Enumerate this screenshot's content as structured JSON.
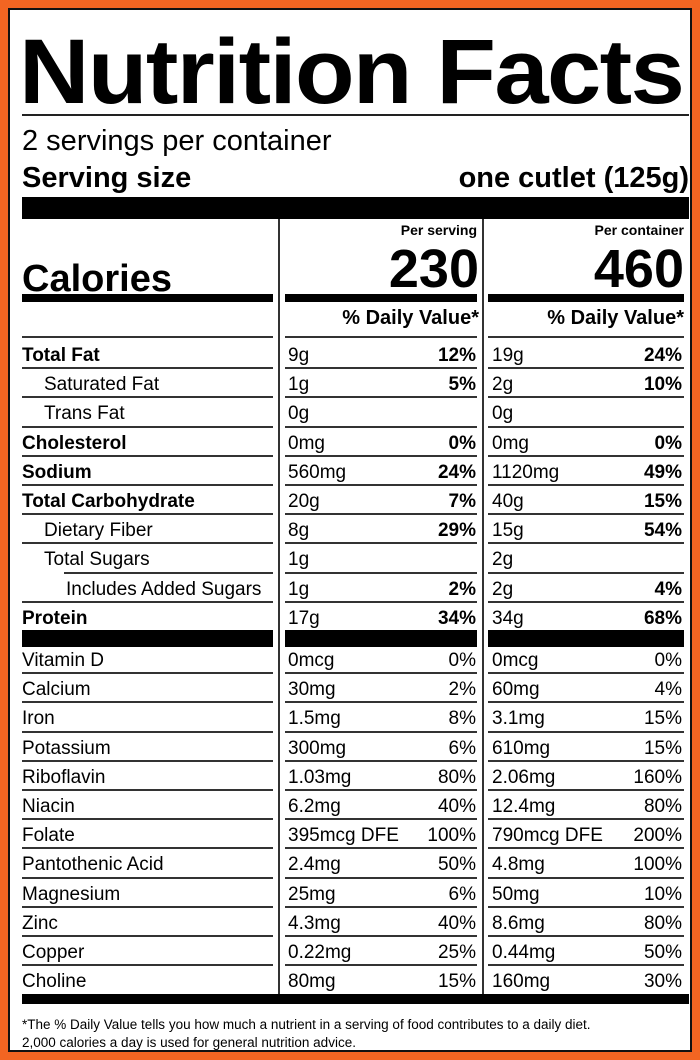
{
  "title": "Nutrition Facts",
  "servings_per_container": "2 servings per container",
  "serving_size": {
    "label": "Serving size",
    "value": "one cutlet (125g)"
  },
  "columns": {
    "per_serving": {
      "heading": "Per serving",
      "calories": "230",
      "dv_heading": "% Daily Value*"
    },
    "per_container": {
      "heading": "Per container",
      "calories": "460",
      "dv_heading": "% Daily Value*"
    }
  },
  "calories_label": "Calories",
  "nutrients": [
    {
      "name": "Total Fat",
      "bold": true,
      "indent": 0,
      "serving_amount": "9g",
      "serving_dv": "12%",
      "container_amount": "19g",
      "container_dv": "24%"
    },
    {
      "name": "Saturated Fat",
      "bold": false,
      "indent": 1,
      "serving_amount": "1g",
      "serving_dv": "5%",
      "container_amount": "2g",
      "container_dv": "10%"
    },
    {
      "name": "Trans Fat",
      "bold": false,
      "indent": 1,
      "serving_amount": "0g",
      "serving_dv": "",
      "container_amount": "0g",
      "container_dv": ""
    },
    {
      "name": "Cholesterol",
      "bold": true,
      "indent": 0,
      "serving_amount": "0mg",
      "serving_dv": "0%",
      "container_amount": "0mg",
      "container_dv": "0%"
    },
    {
      "name": "Sodium",
      "bold": true,
      "indent": 0,
      "serving_amount": "560mg",
      "serving_dv": "24%",
      "container_amount": "1120mg",
      "container_dv": "49%"
    },
    {
      "name": "Total Carbohydrate",
      "bold": true,
      "indent": 0,
      "serving_amount": "20g",
      "serving_dv": "7%",
      "container_amount": "40g",
      "container_dv": "15%"
    },
    {
      "name": "Dietary Fiber",
      "bold": false,
      "indent": 1,
      "serving_amount": "8g",
      "serving_dv": "29%",
      "container_amount": "15g",
      "container_dv": "54%"
    },
    {
      "name": "Total Sugars",
      "bold": false,
      "indent": 1,
      "serving_amount": "1g",
      "serving_dv": "",
      "container_amount": "2g",
      "container_dv": ""
    },
    {
      "name": "Includes Added Sugars",
      "bold": false,
      "indent": 2,
      "serving_amount": "1g",
      "serving_dv": "2%",
      "container_amount": "2g",
      "container_dv": "4%"
    },
    {
      "name": "Protein",
      "bold": true,
      "indent": 0,
      "serving_amount": "17g",
      "serving_dv": "34%",
      "container_amount": "34g",
      "container_dv": "68%"
    }
  ],
  "micronutrients": [
    {
      "name": "Vitamin D",
      "serving_amount": "0mcg",
      "serving_dv": "0%",
      "container_amount": "0mcg",
      "container_dv": "0%"
    },
    {
      "name": "Calcium",
      "serving_amount": "30mg",
      "serving_dv": "2%",
      "container_amount": "60mg",
      "container_dv": "4%"
    },
    {
      "name": "Iron",
      "serving_amount": "1.5mg",
      "serving_dv": "8%",
      "container_amount": "3.1mg",
      "container_dv": "15%"
    },
    {
      "name": "Potassium",
      "serving_amount": "300mg",
      "serving_dv": "6%",
      "container_amount": "610mg",
      "container_dv": "15%"
    },
    {
      "name": "Riboflavin",
      "serving_amount": "1.03mg",
      "serving_dv": "80%",
      "container_amount": "2.06mg",
      "container_dv": "160%"
    },
    {
      "name": "Niacin",
      "serving_amount": "6.2mg",
      "serving_dv": "40%",
      "container_amount": "12.4mg",
      "container_dv": "80%"
    },
    {
      "name": "Folate",
      "serving_amount": "395mcg DFE",
      "serving_dv": "100%",
      "container_amount": "790mcg DFE",
      "container_dv": "200%"
    },
    {
      "name": "Pantothenic Acid",
      "serving_amount": "2.4mg",
      "serving_dv": "50%",
      "container_amount": "4.8mg",
      "container_dv": "100%"
    },
    {
      "name": "Magnesium",
      "serving_amount": "25mg",
      "serving_dv": "6%",
      "container_amount": "50mg",
      "container_dv": "10%"
    },
    {
      "name": "Zinc",
      "serving_amount": "4.3mg",
      "serving_dv": "40%",
      "container_amount": "8.6mg",
      "container_dv": "80%"
    },
    {
      "name": "Copper",
      "serving_amount": "0.22mg",
      "serving_dv": "25%",
      "container_amount": "0.44mg",
      "container_dv": "50%"
    },
    {
      "name": "Choline",
      "serving_amount": "80mg",
      "serving_dv": "15%",
      "container_amount": "160mg",
      "container_dv": "30%"
    }
  ],
  "footnote": {
    "line1": "*The % Daily Value tells you how much a nutrient in a serving of food contributes to a daily diet.",
    "line2": "2,000 calories a day is used for general nutrition advice."
  },
  "colors": {
    "background": "#f26522",
    "label": "#ffffff",
    "ink": "#000000"
  }
}
